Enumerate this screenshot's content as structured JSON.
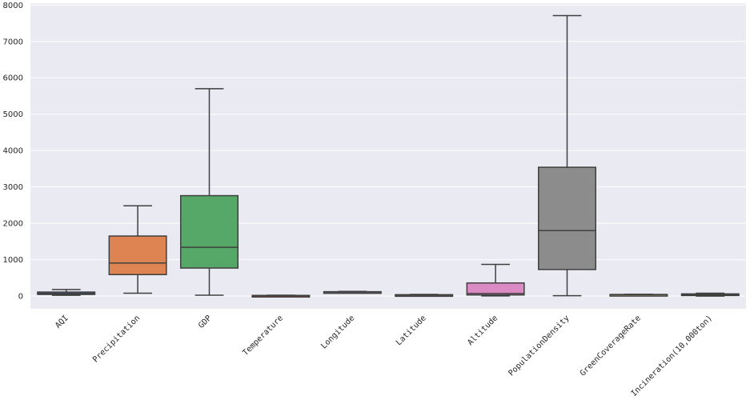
{
  "chart_data": {
    "type": "box",
    "title": "",
    "xlabel": "",
    "ylabel": "",
    "ylim": [
      -350,
      8050
    ],
    "yticks": [
      0,
      1000,
      2000,
      3000,
      4000,
      5000,
      6000,
      7000,
      8000
    ],
    "grid": true,
    "categories": [
      "AQI",
      "Precipitation",
      "GDP",
      "Temperature",
      "Longitude",
      "Latitude",
      "Altitude",
      "PopulationDensity",
      "GreenCoverageRate",
      "Incineration(10,000ton)"
    ],
    "boxes": [
      {
        "category": "AQI",
        "whisker_low": 20,
        "q1": 45,
        "median": 70,
        "q3": 110,
        "whisker_high": 180,
        "color": "#4c72b0"
      },
      {
        "category": "Precipitation",
        "whisker_low": 80,
        "q1": 590,
        "median": 910,
        "q3": 1650,
        "whisker_high": 2480,
        "color": "#dd8452"
      },
      {
        "category": "GDP",
        "whisker_low": 25,
        "q1": 770,
        "median": 1340,
        "q3": 2760,
        "whisker_high": 5700,
        "color": "#55a868"
      },
      {
        "category": "Temperature",
        "whisker_low": -20,
        "q1": 5,
        "median": 12,
        "q3": 18,
        "whisker_high": 25,
        "color": "#c44e52"
      },
      {
        "category": "Longitude",
        "whisker_low": 95,
        "q1": 108,
        "median": 115,
        "q3": 120,
        "whisker_high": 128,
        "color": "#8172b3"
      },
      {
        "category": "Latitude",
        "whisker_low": 20,
        "q1": 28,
        "median": 32,
        "q3": 38,
        "whisker_high": 45,
        "color": "#937860"
      },
      {
        "category": "Altitude",
        "whisker_low": 5,
        "q1": 30,
        "median": 70,
        "q3": 360,
        "whisker_high": 870,
        "color": "#da8bc3"
      },
      {
        "category": "PopulationDensity",
        "whisker_low": 10,
        "q1": 730,
        "median": 1800,
        "q3": 3540,
        "whisker_high": 7710,
        "color": "#8c8c8c"
      },
      {
        "category": "GreenCoverageRate",
        "whisker_low": 35,
        "q1": 38,
        "median": 41,
        "q3": 44,
        "whisker_high": 48,
        "color": "#ccb974"
      },
      {
        "category": "Incineration(10,000ton)",
        "whisker_low": 0,
        "q1": 15,
        "median": 35,
        "q3": 60,
        "whisker_high": 80,
        "color": "#64b5cd"
      }
    ],
    "colors": {
      "plot_background": "#eaeaf2",
      "grid": "#ffffff",
      "edge": "#3f3f3f"
    }
  }
}
